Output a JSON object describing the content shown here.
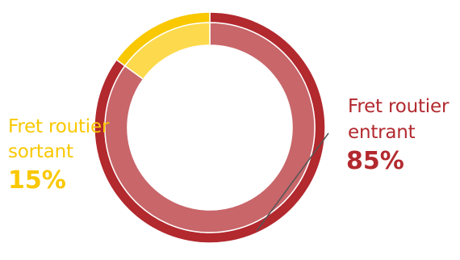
{
  "chart_data": {
    "type": "pie",
    "style": "donut",
    "categories": [
      "Fret routier entrant",
      "Fret routier sortant"
    ],
    "values": [
      85,
      15
    ],
    "units": "%",
    "slices": [
      {
        "name": "Fret routier entrant",
        "label_lines": [
          "Fret routier",
          "entrant"
        ],
        "value": 85,
        "display": "85%",
        "color": "#B2292E",
        "inner_color": "#C8666A"
      },
      {
        "name": "Fret routier sortant",
        "label_lines": [
          "Fret routier",
          "sortant"
        ],
        "value": 15,
        "display": "15%",
        "color": "#F9C800",
        "inner_color": "#FDDA4D"
      }
    ],
    "start_angle_deg": 0,
    "direction": "clockwise",
    "legend": "none",
    "title": ""
  }
}
